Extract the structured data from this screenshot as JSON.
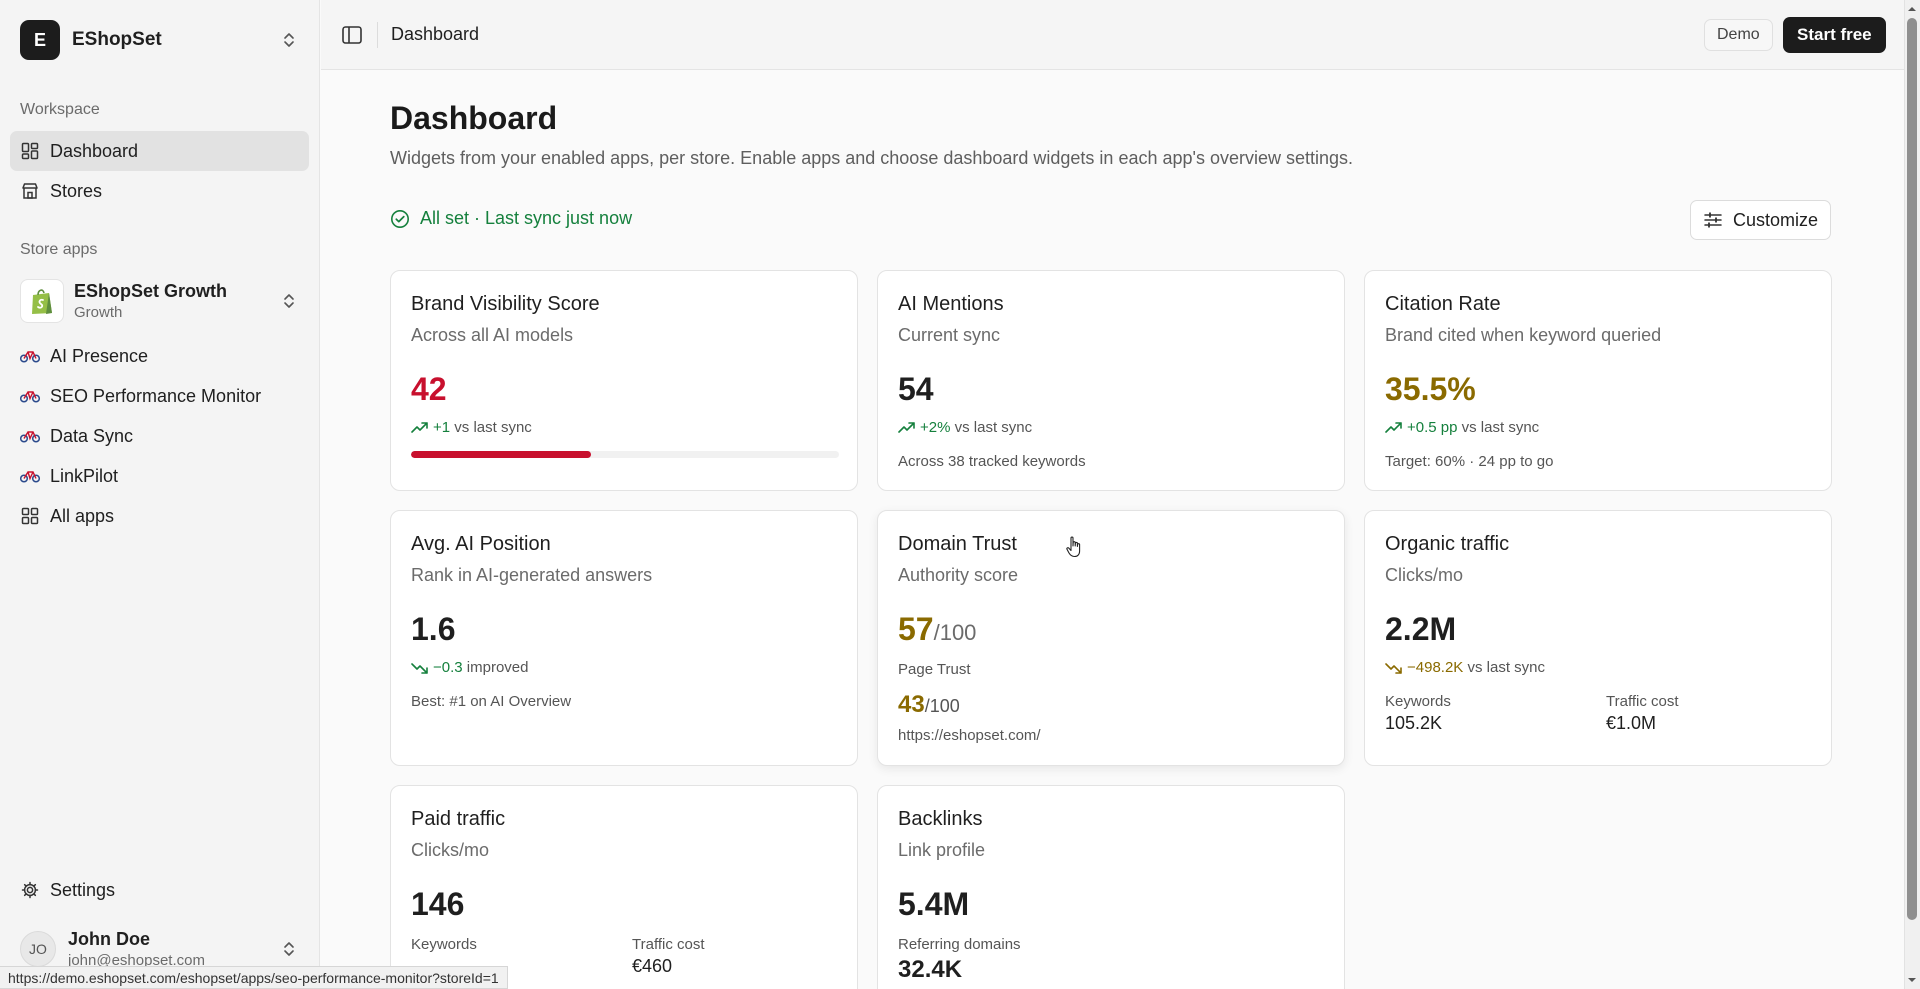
{
  "brand": {
    "initial": "E",
    "name": "EShopSet"
  },
  "sidebar": {
    "workspace_label": "Workspace",
    "workspace_items": [
      {
        "label": "Dashboard",
        "icon": "grid-icon",
        "active": true
      },
      {
        "label": "Stores",
        "icon": "store-icon"
      }
    ],
    "store_apps_label": "Store apps",
    "app_switcher": {
      "name": "EShopSet Growth",
      "plan": "Growth",
      "icon": "shopify-bag-icon"
    },
    "app_items": [
      {
        "label": "AI Presence",
        "icon": "bike-icon"
      },
      {
        "label": "SEO Performance Monitor",
        "icon": "bike-icon"
      },
      {
        "label": "Data Sync",
        "icon": "bike-icon"
      },
      {
        "label": "LinkPilot",
        "icon": "bike-icon"
      },
      {
        "label": "All apps",
        "icon": "grid-icon"
      }
    ],
    "settings_label": "Settings",
    "user": {
      "initials": "JO",
      "name": "John Doe",
      "email": "john@eshopset.com"
    }
  },
  "header": {
    "breadcrumb": "Dashboard",
    "demo_badge": "Demo",
    "start_button": "Start free"
  },
  "main": {
    "title": "Dashboard",
    "subtitle": "Widgets from your enabled apps, per store. Enable apps and choose dashboard widgets in each app's overview settings.",
    "status": "All set · Last sync just now",
    "customize_label": "Customize"
  },
  "cards": {
    "brand_visibility": {
      "title": "Brand Visibility Score",
      "subtitle": "Across all AI models",
      "value": "42",
      "delta": "+1",
      "delta_suffix": "vs last sync",
      "progress": 0.42
    },
    "ai_mentions": {
      "title": "AI Mentions",
      "subtitle": "Current sync",
      "value": "54",
      "delta": "+2%",
      "delta_suffix": "vs last sync",
      "note": "Across 38 tracked keywords"
    },
    "citation_rate": {
      "title": "Citation Rate",
      "subtitle": "Brand cited when keyword queried",
      "value": "35.5%",
      "delta": "+0.5 pp",
      "delta_suffix": "vs last sync",
      "note": "Target: 60% · 24 pp to go"
    },
    "avg_ai_position": {
      "title": "Avg. AI Position",
      "subtitle": "Rank in AI-generated answers",
      "value": "1.6",
      "delta": "−0.3",
      "delta_suffix": "improved",
      "note": "Best: #1 on AI Overview"
    },
    "domain_trust": {
      "title": "Domain Trust",
      "subtitle": "Authority score",
      "value": "57",
      "value_of": "/100",
      "page_trust_label": "Page Trust",
      "page_trust_value": "43",
      "page_trust_of": "/100",
      "url": "https://eshopset.com/"
    },
    "organic_traffic": {
      "title": "Organic traffic",
      "subtitle": "Clicks/mo",
      "value": "2.2M",
      "delta": "−498.2K",
      "delta_suffix": "vs last sync",
      "keywords_label": "Keywords",
      "keywords_value": "105.2K",
      "cost_label": "Traffic cost",
      "cost_value": "€1.0M"
    },
    "paid_traffic": {
      "title": "Paid traffic",
      "subtitle": "Clicks/mo",
      "value": "146",
      "keywords_label": "Keywords",
      "keywords_value": "",
      "cost_label": "Traffic cost",
      "cost_value": "€460"
    },
    "backlinks": {
      "title": "Backlinks",
      "subtitle": "Link profile",
      "value": "5.4M",
      "ref_label": "Referring domains",
      "ref_value": "32.4K"
    }
  },
  "status_url": "https://demo.eshopset.com/eshopset/apps/seo-performance-monitor?storeId=1",
  "colors": {
    "accent_red": "#c8102e",
    "accent_gold": "#8a6a00",
    "success_green": "#15803d",
    "dark": "#1c1c1c"
  }
}
